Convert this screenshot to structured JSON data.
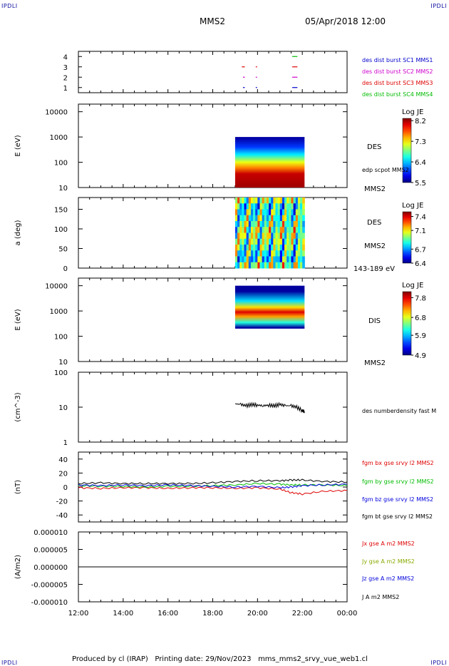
{
  "corners": {
    "top_left": "IPDLI",
    "top_right": "IPDLI",
    "bottom_left": "IPDLI",
    "bottom_right": "IPDLI"
  },
  "header": {
    "spacecraft": "MMS2",
    "datetime": "05/Apr/2018 12:00"
  },
  "footer": {
    "produced_by": "Produced by cl (IRAP)",
    "printing_date": "Printing date: 29/Nov/2023",
    "product": "mms_mms2_srvy_vue_web1.cl"
  },
  "time_axis": {
    "ticks": [
      "12:00",
      "14:00",
      "16:00",
      "18:00",
      "20:00",
      "22:00",
      "00:00"
    ],
    "range_hours": [
      12,
      24
    ]
  },
  "chart_data": [
    {
      "type": "scatter",
      "panel": "availability",
      "ylabel": "",
      "yticks": [
        "1",
        "2",
        "3",
        "4"
      ],
      "ylim": [
        0.5,
        4.5
      ],
      "legend": [
        {
          "label": "des dist burst SC1 MMS1",
          "color": "#0000cc"
        },
        {
          "label": "des dist burst SC2 MMS2",
          "color": "#cc00cc"
        },
        {
          "label": "des dist burst SC3 MMS3",
          "color": "#dd0000"
        },
        {
          "label": "des dist burst SC4 MMS4",
          "color": "#00bb00"
        }
      ],
      "segments": [
        {
          "sc": 1,
          "start": 19.35,
          "end": 19.4
        },
        {
          "sc": 1,
          "start": 19.92,
          "end": 19.95
        },
        {
          "sc": 1,
          "start": 21.55,
          "end": 21.75
        },
        {
          "sc": 2,
          "start": 19.35,
          "end": 19.4
        },
        {
          "sc": 2,
          "start": 19.92,
          "end": 19.95
        },
        {
          "sc": 2,
          "start": 21.55,
          "end": 21.75
        },
        {
          "sc": 3,
          "start": 19.3,
          "end": 19.4
        },
        {
          "sc": 3,
          "start": 19.92,
          "end": 19.95
        },
        {
          "sc": 3,
          "start": 21.55,
          "end": 21.75
        },
        {
          "sc": 4,
          "start": 21.55,
          "end": 21.75
        }
      ]
    },
    {
      "type": "heatmap",
      "panel": "des-energy",
      "ylabel": "E (eV)",
      "yscale": "log",
      "ylim": [
        10,
        20000
      ],
      "yticks": [
        "10",
        "100",
        "1000",
        "10000"
      ],
      "right_labels": [
        "DES",
        "edp scpot MMS2",
        "MMS2"
      ],
      "colorbar": {
        "title": "Log JE",
        "min": 5.5,
        "max": 8.3,
        "ticks": [
          "5.5",
          "6.4",
          "7.3",
          "8.2"
        ]
      },
      "data_extent": {
        "start": 19.0,
        "end": 22.1,
        "ymin": 10,
        "ymax": 1000
      },
      "profile": [
        {
          "y": 12,
          "value": 8.2
        },
        {
          "y": 35,
          "value": 8.1
        },
        {
          "y": 60,
          "value": 7.6
        },
        {
          "y": 100,
          "value": 7.2
        },
        {
          "y": 200,
          "value": 6.5
        },
        {
          "y": 400,
          "value": 6.0
        },
        {
          "y": 900,
          "value": 5.6
        }
      ]
    },
    {
      "type": "heatmap",
      "panel": "des-pitch-angle",
      "ylabel": "a (deg)",
      "ylim": [
        0,
        180
      ],
      "yticks": [
        "0",
        "50",
        "100",
        "150"
      ],
      "right_labels": [
        "DES",
        "MMS2",
        "143-189 eV"
      ],
      "colorbar": {
        "title": "Log JE",
        "min": 6.4,
        "max": 7.5,
        "ticks": [
          "6.4",
          "6.7",
          "7.1",
          "7.4"
        ]
      },
      "data_extent": {
        "start": 19.0,
        "end": 22.1,
        "ymin": 0,
        "ymax": 180
      }
    },
    {
      "type": "heatmap",
      "panel": "dis-energy",
      "ylabel": "E (eV)",
      "yscale": "log",
      "ylim": [
        10,
        20000
      ],
      "yticks": [
        "10",
        "100",
        "1000",
        "10000"
      ],
      "right_labels": [
        "DIS",
        "MMS2"
      ],
      "colorbar": {
        "title": "Log JE",
        "min": 4.9,
        "max": 8.1,
        "ticks": [
          "4.9",
          "5.9",
          "6.8",
          "7.8"
        ]
      },
      "data_extent": {
        "start": 19.0,
        "end": 22.1,
        "ymin": 200,
        "ymax": 10000
      },
      "profile": [
        {
          "y": 220,
          "value": 5.0
        },
        {
          "y": 350,
          "value": 6.2
        },
        {
          "y": 600,
          "value": 7.2
        },
        {
          "y": 900,
          "value": 7.8
        },
        {
          "y": 1400,
          "value": 7.0
        },
        {
          "y": 2500,
          "value": 6.0
        },
        {
          "y": 6000,
          "value": 5.0
        }
      ]
    },
    {
      "type": "line",
      "panel": "density",
      "ylabel": "(cm^-3)",
      "yscale": "log",
      "ylim": [
        1,
        100
      ],
      "yticks": [
        "1",
        "10",
        "100"
      ],
      "series": [
        {
          "name": "des numberdensity fast M",
          "color": "#000000",
          "x": [
            19.0,
            19.25,
            19.5,
            19.75,
            20.0,
            20.25,
            20.5,
            20.75,
            21.0,
            21.25,
            21.5,
            21.75,
            22.0,
            22.1
          ],
          "y": [
            12.5,
            12.0,
            11.0,
            12.0,
            11.5,
            11.0,
            11.5,
            11.0,
            12.0,
            11.0,
            11.0,
            10.0,
            8.0,
            7.5
          ]
        }
      ]
    },
    {
      "type": "line",
      "panel": "magnetic-field",
      "ylabel": "(nT)",
      "ylim": [
        -50,
        50
      ],
      "yticks": [
        "-40",
        "-20",
        "0",
        "20",
        "40"
      ],
      "series": [
        {
          "name": "fgm bx gse srvy l2 MMS2",
          "color": "#dd0000",
          "x": [
            12,
            13,
            14,
            15,
            16,
            17,
            18,
            19,
            20,
            21,
            21.5,
            22,
            23,
            24
          ],
          "y": [
            -1,
            -2,
            -1,
            -1,
            -2,
            -1,
            -1,
            -2,
            -1,
            -3,
            -8,
            -10,
            -6,
            -5
          ]
        },
        {
          "name": "fgm by gse srvy l2 MMS2",
          "color": "#00bb00",
          "x": [
            12,
            13,
            14,
            15,
            16,
            17,
            18,
            19,
            20,
            21,
            21.5,
            22,
            23,
            24
          ],
          "y": [
            2,
            1,
            1,
            0,
            1,
            1,
            2,
            3,
            5,
            4,
            3,
            3,
            3,
            2
          ]
        },
        {
          "name": "fgm bz gse srvy l2 MMS2",
          "color": "#0000dd",
          "x": [
            12,
            13,
            14,
            15,
            16,
            17,
            18,
            19,
            20,
            21,
            21.5,
            22,
            23,
            24
          ],
          "y": [
            3,
            2,
            3,
            2,
            3,
            2,
            1,
            0,
            1,
            -1,
            0,
            2,
            3,
            4
          ]
        },
        {
          "name": "fgm bt gse srvy l2 MMS2",
          "color": "#000000",
          "x": [
            12,
            13,
            14,
            15,
            16,
            17,
            18,
            19,
            20,
            21,
            21.5,
            22,
            23,
            24
          ],
          "y": [
            5,
            6,
            5,
            5,
            5,
            5,
            6,
            8,
            9,
            9,
            10,
            10,
            8,
            7
          ]
        }
      ]
    },
    {
      "type": "line",
      "panel": "current-density",
      "ylabel": "(A/m2)",
      "ylim": [
        -1e-05,
        1e-05
      ],
      "yticks": [
        "-0.000010",
        "-0.000005",
        "0.000000",
        "0.000005",
        "0.000010"
      ],
      "series": [
        {
          "name": "Jx gse A m2 MMS2",
          "color": "#dd0000",
          "x": [
            12,
            24
          ],
          "y": [
            0,
            0
          ]
        },
        {
          "name": "Jy gse A m2 MMS2",
          "color": "#88aa00",
          "x": [
            12,
            24
          ],
          "y": [
            0,
            0
          ]
        },
        {
          "name": "Jz gse A m2 MMS2",
          "color": "#0000dd",
          "x": [
            12,
            24
          ],
          "y": [
            0,
            0
          ]
        },
        {
          "name": "J A m2 MMS2",
          "color": "#000000",
          "x": [
            12,
            24
          ],
          "y": [
            0,
            0
          ]
        }
      ]
    }
  ]
}
